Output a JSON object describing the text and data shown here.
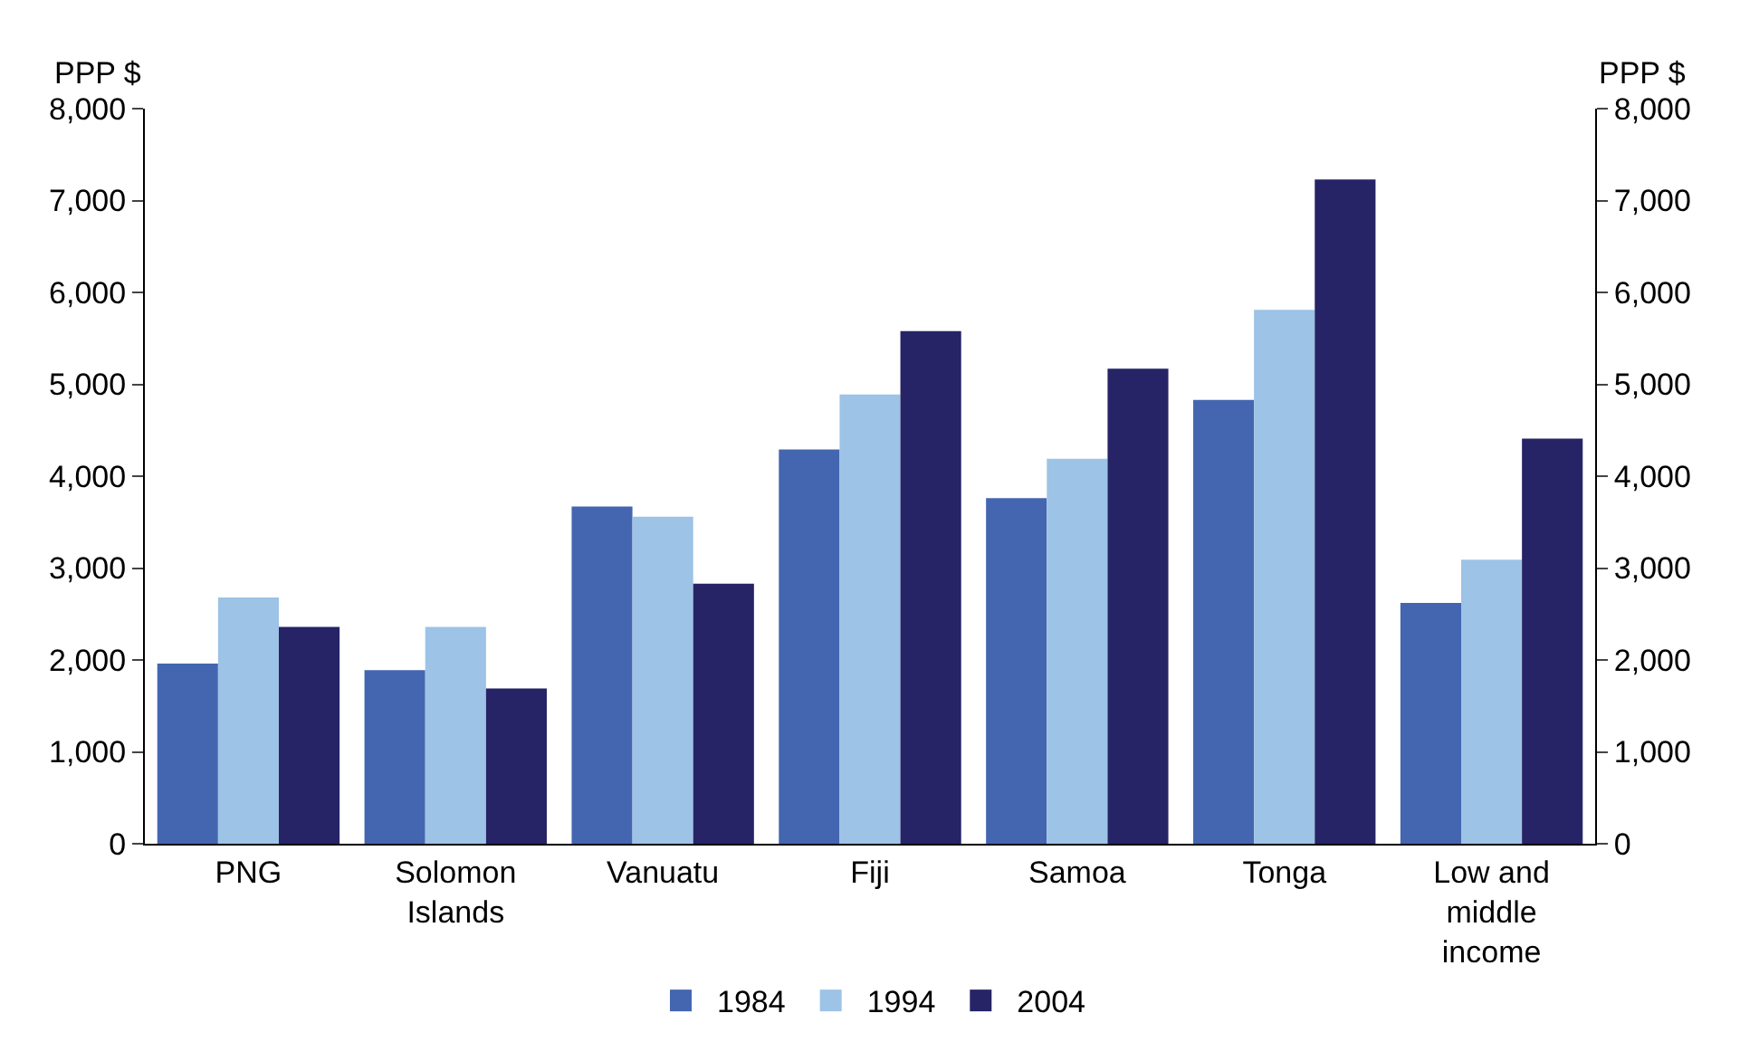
{
  "chart_data": {
    "type": "bar",
    "ylabel": "PPP $",
    "y2label": "PPP $",
    "categories": [
      "PNG",
      "Solomon Islands",
      "Vanuatu",
      "Fiji",
      "Samoa",
      "Tonga",
      "Low and middle income"
    ],
    "series": [
      {
        "name": "1984",
        "color": "#4466b0",
        "values": [
          1960,
          1890,
          3670,
          4290,
          3760,
          4830,
          2620
        ]
      },
      {
        "name": "1994",
        "color": "#9dc3e6",
        "values": [
          2680,
          2360,
          3560,
          4890,
          4190,
          5810,
          3090
        ]
      },
      {
        "name": "2004",
        "color": "#262466",
        "values": [
          2360,
          1690,
          2830,
          5580,
          5170,
          7230,
          4410
        ]
      }
    ],
    "ylim": [
      0,
      8000
    ],
    "yticks": [
      {
        "value": 0,
        "label": "0"
      },
      {
        "value": 1000,
        "label": "1,000"
      },
      {
        "value": 2000,
        "label": "2,000"
      },
      {
        "value": 3000,
        "label": "3,000"
      },
      {
        "value": 4000,
        "label": "4,000"
      },
      {
        "value": 5000,
        "label": "5,000"
      },
      {
        "value": 6000,
        "label": "6,000"
      },
      {
        "value": 7000,
        "label": "7,000"
      },
      {
        "value": 8000,
        "label": "8,000"
      }
    ],
    "y2lim": [
      0,
      8000
    ],
    "y2ticks": [
      {
        "value": 0,
        "label": "0"
      },
      {
        "value": 1000,
        "label": "1,000"
      },
      {
        "value": 2000,
        "label": "2,000"
      },
      {
        "value": 3000,
        "label": "3,000"
      },
      {
        "value": 4000,
        "label": "4,000"
      },
      {
        "value": 5000,
        "label": "5,000"
      },
      {
        "value": 6000,
        "label": "6,000"
      },
      {
        "value": 7000,
        "label": "7,000"
      },
      {
        "value": 8000,
        "label": "8,000"
      }
    ],
    "grid": false,
    "legend": "bottom"
  }
}
